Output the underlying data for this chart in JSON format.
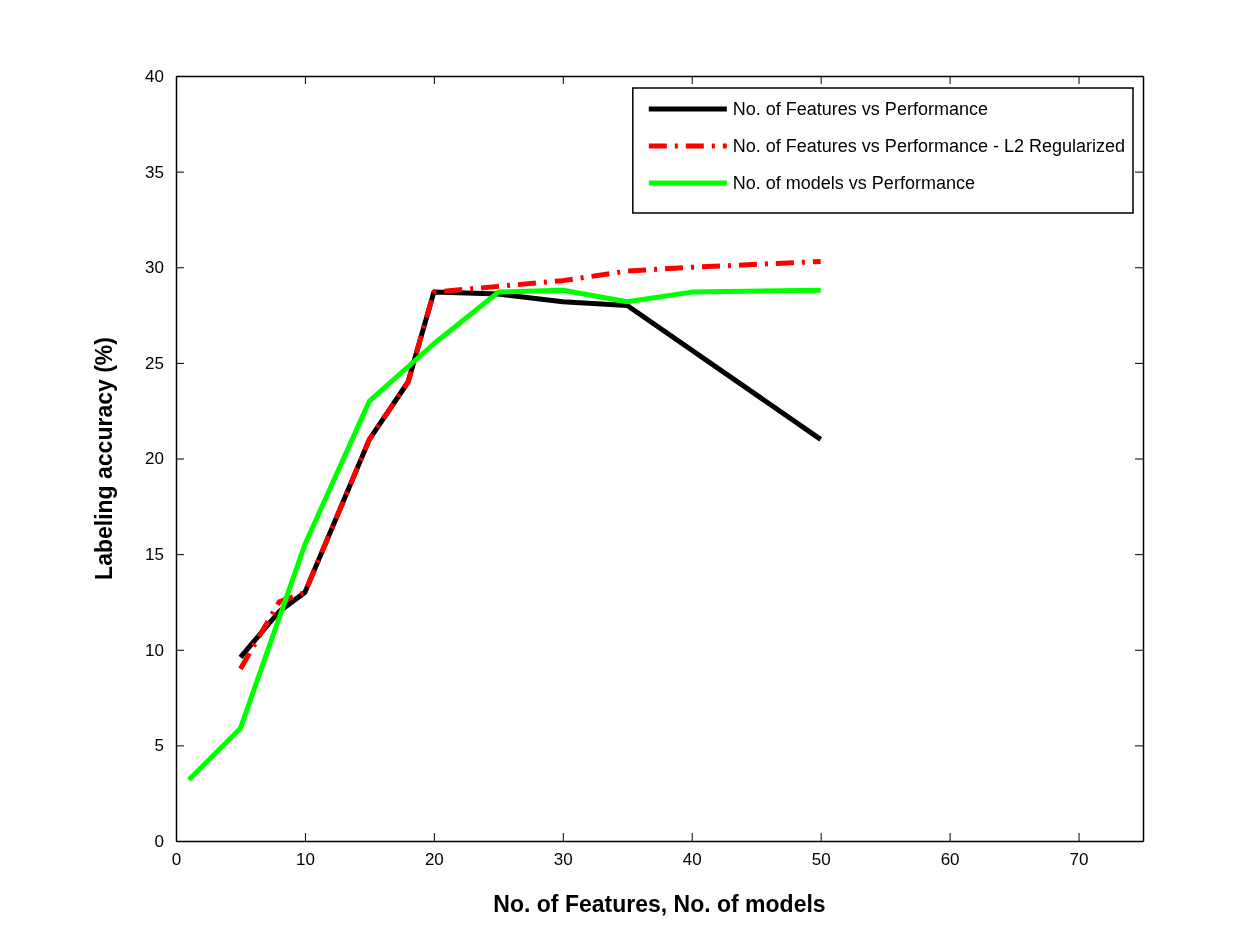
{
  "chart_data": {
    "type": "line",
    "xlabel": "No. of Features, No. of models",
    "ylabel": "Labeling accuracy (%)",
    "xlim": [
      0,
      75
    ],
    "xticks": [
      0,
      10,
      20,
      30,
      40,
      50,
      60,
      70
    ],
    "ylim": [
      0,
      40
    ],
    "yticks": [
      0,
      5,
      10,
      15,
      20,
      25,
      30,
      35,
      40
    ],
    "grid": false,
    "legend": "top right",
    "marker": "none",
    "series": [
      {
        "name": "No. of Features vs Performance",
        "color": "#000000",
        "line_style": "solid",
        "x": [
          5,
          8,
          10,
          15,
          18,
          20,
          25,
          30,
          35,
          50
        ],
        "values": [
          9.6,
          12,
          13,
          21,
          24,
          28.7,
          28.6,
          28.2,
          28,
          21
        ]
      },
      {
        "name": "No. of Features vs Performance - L2 Regularized",
        "color": "#ff0000",
        "line_style": "dashdot",
        "x": [
          5,
          8,
          10,
          15,
          18,
          20,
          25,
          30,
          35,
          40,
          50
        ],
        "values": [
          9,
          12.5,
          13,
          21,
          24,
          28.7,
          29,
          29.3,
          29.8,
          30,
          30.3
        ]
      },
      {
        "name": "No. of models vs Performance",
        "color": "#00ff00",
        "line_style": "solid",
        "x": [
          1,
          5,
          10,
          15,
          20,
          25,
          30,
          35,
          40,
          50
        ],
        "values": [
          3.2,
          5.9,
          15.5,
          23,
          26,
          28.7,
          28.8,
          28.2,
          28.7,
          28.8
        ]
      }
    ]
  }
}
